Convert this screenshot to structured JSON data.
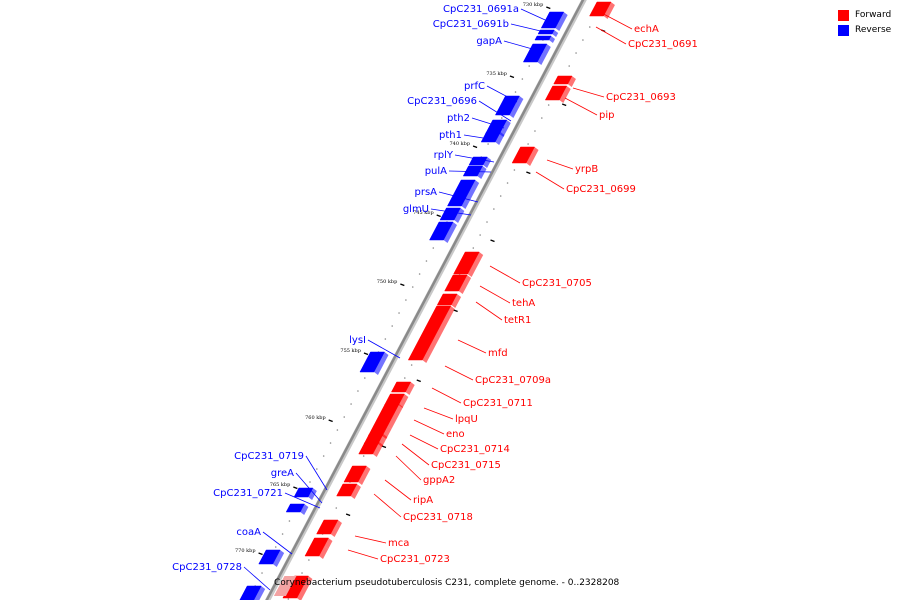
{
  "legend": {
    "forward_label": "Forward",
    "reverse_label": "Reverse",
    "forward_color": "#ff0000",
    "reverse_color": "#0000ff"
  },
  "caption": "Corynebacterium pseudotuberculosis C231, complete genome. - 0..2328208",
  "ticks": [
    "730 kbp",
    "735 kbp",
    "740 kbp",
    "745 kbp",
    "750 kbp",
    "755 kbp",
    "760 kbp",
    "765 kbp",
    "770 kbp"
  ],
  "genes_reverse": [
    "CpC231_0691a",
    "CpC231_0691b",
    "gapA",
    "prfC",
    "CpC231_0696",
    "pth2",
    "pth1",
    "rplY",
    "pulA",
    "prsA",
    "glmU",
    "lysI",
    "CpC231_0719",
    "greA",
    "CpC231_0721",
    "coaA",
    "CpC231_0728"
  ],
  "genes_forward": [
    "echA",
    "CpC231_0691",
    "CpC231_0693",
    "pip",
    "yrpB",
    "CpC231_0699",
    "CpC231_0705",
    "tehA",
    "tetR1",
    "mfd",
    "CpC231_0709a",
    "CpC231_0711",
    "lpqU",
    "eno",
    "CpC231_0714",
    "CpC231_0715",
    "gppA2",
    "ripA",
    "CpC231_0718",
    "mca",
    "CpC231_0723"
  ]
}
